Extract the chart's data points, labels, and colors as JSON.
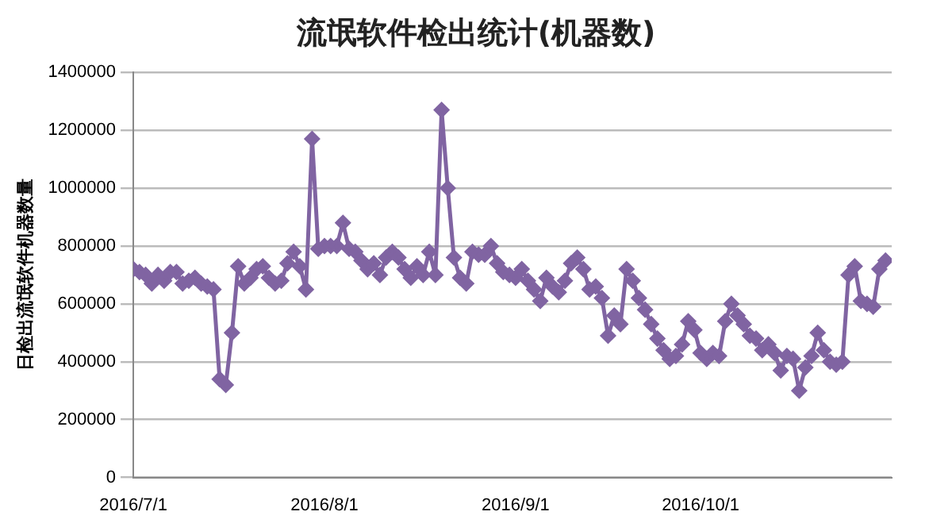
{
  "chart_data": {
    "type": "line",
    "title": "流氓软件检出统计(机器数)",
    "ylabel": "日检出流氓软件机器数量",
    "x": [
      "2016-07-01",
      "2016-07-02",
      "2016-07-03",
      "2016-07-04",
      "2016-07-05",
      "2016-07-06",
      "2016-07-07",
      "2016-07-08",
      "2016-07-09",
      "2016-07-10",
      "2016-07-11",
      "2016-07-12",
      "2016-07-13",
      "2016-07-14",
      "2016-07-15",
      "2016-07-16",
      "2016-07-17",
      "2016-07-18",
      "2016-07-19",
      "2016-07-20",
      "2016-07-21",
      "2016-07-22",
      "2016-07-23",
      "2016-07-24",
      "2016-07-25",
      "2016-07-26",
      "2016-07-27",
      "2016-07-28",
      "2016-07-29",
      "2016-07-30",
      "2016-07-31",
      "2016-08-01",
      "2016-08-02",
      "2016-08-03",
      "2016-08-04",
      "2016-08-05",
      "2016-08-06",
      "2016-08-07",
      "2016-08-08",
      "2016-08-09",
      "2016-08-10",
      "2016-08-11",
      "2016-08-12",
      "2016-08-13",
      "2016-08-14",
      "2016-08-15",
      "2016-08-16",
      "2016-08-17",
      "2016-08-18",
      "2016-08-19",
      "2016-08-20",
      "2016-08-21",
      "2016-08-22",
      "2016-08-23",
      "2016-08-24",
      "2016-08-25",
      "2016-08-26",
      "2016-08-27",
      "2016-08-28",
      "2016-08-29",
      "2016-08-30",
      "2016-08-31",
      "2016-09-01",
      "2016-09-02",
      "2016-09-03",
      "2016-09-04",
      "2016-09-05",
      "2016-09-06",
      "2016-09-07",
      "2016-09-08",
      "2016-09-09",
      "2016-09-10",
      "2016-09-11",
      "2016-09-12",
      "2016-09-13",
      "2016-09-14",
      "2016-09-15",
      "2016-09-16",
      "2016-09-17",
      "2016-09-18",
      "2016-09-19",
      "2016-09-20",
      "2016-09-21",
      "2016-09-22",
      "2016-09-23",
      "2016-09-24",
      "2016-09-25",
      "2016-09-26",
      "2016-09-27",
      "2016-09-28",
      "2016-09-29",
      "2016-09-30",
      "2016-10-01",
      "2016-10-02",
      "2016-10-03",
      "2016-10-04",
      "2016-10-05",
      "2016-10-06",
      "2016-10-07",
      "2016-10-08",
      "2016-10-09",
      "2016-10-10",
      "2016-10-11",
      "2016-10-12",
      "2016-10-13",
      "2016-10-14",
      "2016-10-15",
      "2016-10-16",
      "2016-10-17",
      "2016-10-18",
      "2016-10-19",
      "2016-10-20",
      "2016-10-21",
      "2016-10-22",
      "2016-10-23",
      "2016-10-24",
      "2016-10-25",
      "2016-10-26",
      "2016-10-27",
      "2016-10-28",
      "2016-10-29",
      "2016-10-30",
      "2016-10-31"
    ],
    "series": [
      {
        "color": "#8064a2",
        "values": [
          720000,
          710000,
          700000,
          670000,
          700000,
          680000,
          710000,
          710000,
          670000,
          680000,
          690000,
          670000,
          660000,
          650000,
          340000,
          320000,
          500000,
          730000,
          670000,
          690000,
          720000,
          730000,
          690000,
          670000,
          680000,
          740000,
          780000,
          730000,
          650000,
          1170000,
          790000,
          800000,
          800000,
          800000,
          880000,
          790000,
          780000,
          750000,
          720000,
          740000,
          700000,
          760000,
          780000,
          760000,
          720000,
          690000,
          730000,
          700000,
          780000,
          700000,
          1270000,
          1000000,
          760000,
          690000,
          670000,
          780000,
          770000,
          770000,
          800000,
          740000,
          710000,
          700000,
          690000,
          720000,
          680000,
          650000,
          610000,
          690000,
          660000,
          640000,
          680000,
          740000,
          760000,
          720000,
          650000,
          660000,
          620000,
          490000,
          560000,
          530000,
          720000,
          680000,
          620000,
          580000,
          530000,
          480000,
          440000,
          410000,
          420000,
          460000,
          540000,
          510000,
          430000,
          410000,
          430000,
          420000,
          540000,
          600000,
          560000,
          530000,
          490000,
          480000,
          440000,
          460000,
          430000,
          370000,
          420000,
          410000,
          300000,
          380000,
          420000,
          500000,
          440000,
          400000,
          390000,
          400000,
          700000,
          730000,
          610000,
          600000,
          590000,
          720000,
          750000
        ]
      }
    ],
    "xlim": [
      "2016-07-01",
      "2016-11-01"
    ],
    "xticks": [
      {
        "value": "2016-07-01",
        "label": "2016/7/1"
      },
      {
        "value": "2016-08-01",
        "label": "2016/8/1"
      },
      {
        "value": "2016-09-01",
        "label": "2016/9/1"
      },
      {
        "value": "2016-10-01",
        "label": "2016/10/1"
      }
    ],
    "ylim": [
      0,
      1400000
    ],
    "yticks": [
      0,
      200000,
      400000,
      600000,
      800000,
      1000000,
      1200000,
      1400000
    ],
    "grid": "y",
    "legend": false,
    "marker": "diamond",
    "line_style": "solid"
  }
}
